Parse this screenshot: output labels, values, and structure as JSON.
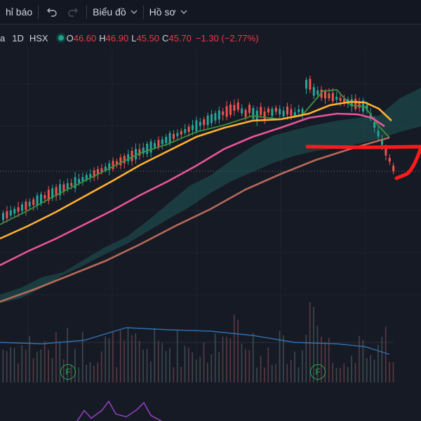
{
  "toolbar": {
    "indicators_label": "hỉ báo",
    "chart_menu_label": "Biểu đồ",
    "profile_menu_label": "Hồ sơ"
  },
  "legend": {
    "symbol_fragment": "a",
    "interval": "1D",
    "exchange": "HSX",
    "open_label": "O",
    "open": "46.60",
    "high_label": "H",
    "high": "46.90",
    "low_label": "L",
    "low": "45.50",
    "close_label": "C",
    "close": "45.70",
    "change": "−1.30 (−2.77%)"
  },
  "badges": {
    "f1": "F",
    "f2": "F"
  },
  "colors": {
    "background": "#161a25",
    "candle_up": "#26a69a",
    "candle_down": "#ef5350",
    "ma_fast": "#ffb02e",
    "ma_mid": "#e9559a",
    "ma_slow": "#b66a58",
    "ma_short": "#3f8f3a",
    "cloud": "#1f5a58",
    "annotation": "#ff1a1a"
  }
}
